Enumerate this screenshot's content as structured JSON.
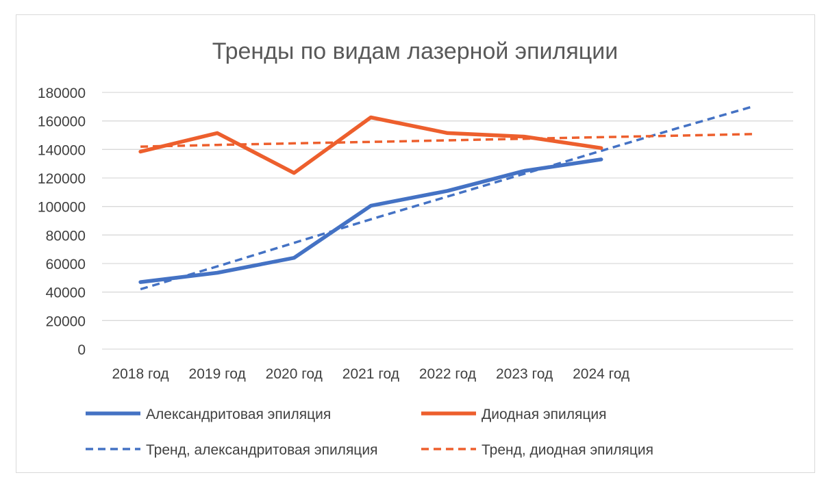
{
  "chart_data": {
    "type": "line",
    "title": "Тренды по видам лазерной эпиляции",
    "categories": [
      "2018 год",
      "2019 год",
      "2020 год",
      "2021 год",
      "2022 год",
      "2023 год",
      "2024 год",
      "",
      ""
    ],
    "ylim": [
      0,
      180000
    ],
    "yticks": [
      "0",
      "20000",
      "40000",
      "60000",
      "80000",
      "100000",
      "120000",
      "140000",
      "160000",
      "180000"
    ],
    "grid": true,
    "legend_position": "bottom",
    "series": [
      {
        "name": "Александритовая эпиляция",
        "style": "solid",
        "color": "#4472c4",
        "values": [
          47000,
          53500,
          64000,
          100500,
          111000,
          125000,
          133000,
          null,
          null
        ]
      },
      {
        "name": "Диодная эпиляция",
        "style": "solid",
        "color": "#ed5f2d",
        "values": [
          138500,
          151500,
          123500,
          162500,
          151500,
          149000,
          141000,
          null,
          null
        ]
      },
      {
        "name": "Тренд, александритовая эпиляция",
        "style": "dashed",
        "color": "#4472c4",
        "values": [
          42000,
          58000,
          74500,
          91000,
          107000,
          123000,
          139000,
          155000,
          170500
        ]
      },
      {
        "name": "Тренд, диодная эпиляция",
        "style": "dashed",
        "color": "#ed5f2d",
        "values": [
          142000,
          143200,
          144300,
          145300,
          146400,
          147500,
          148600,
          149700,
          150800
        ]
      }
    ]
  }
}
